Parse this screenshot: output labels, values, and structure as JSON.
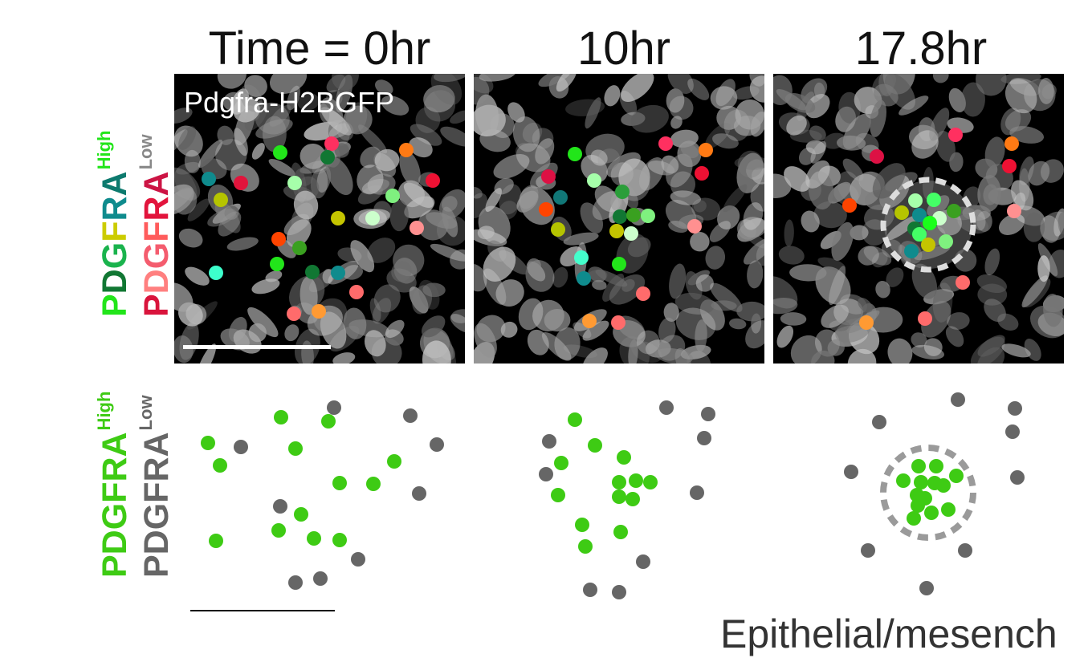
{
  "time_labels": [
    "Time = 0hr",
    "10hr",
    "17.8hr"
  ],
  "channel_label": "Pdgfra-H2BGFP",
  "top_side_label": {
    "high_letters": [
      {
        "ch": "P",
        "color": "#22e51a"
      },
      {
        "ch": "D",
        "color": "#117733"
      },
      {
        "ch": "G",
        "color": "#1ab34d"
      },
      {
        "ch": "F",
        "color": "#cccc00"
      },
      {
        "ch": "R",
        "color": "#0f8b8d"
      },
      {
        "ch": "A",
        "color": "#0d7a6e"
      }
    ],
    "high_sup": "High",
    "high_sup_color": "#22e51a",
    "low_letters": [
      {
        "ch": "P",
        "color": "#d9143c"
      },
      {
        "ch": "D",
        "color": "#ff7f7f"
      },
      {
        "ch": "G",
        "color": "#f45c6e"
      },
      {
        "ch": "F",
        "color": "#ff5c5c"
      },
      {
        "ch": "R",
        "color": "#e2143c"
      },
      {
        "ch": "A",
        "color": "#cc1444"
      }
    ],
    "low_sup": "Low",
    "low_sup_color": "#888888"
  },
  "bottom_side_label": {
    "high_text": "PDGFRA",
    "high_sup": "High",
    "high_color": "#3ecb14",
    "low_text": "PDGFRA",
    "low_sup": "Low",
    "low_color": "#666666"
  },
  "footer_text": "Epithelial/mesench",
  "colors": {
    "high_green": "#3ecb14",
    "low_gray": "#666666",
    "ring_top": "#dddddd",
    "ring_bottom": "#9a9a9a"
  }
}
